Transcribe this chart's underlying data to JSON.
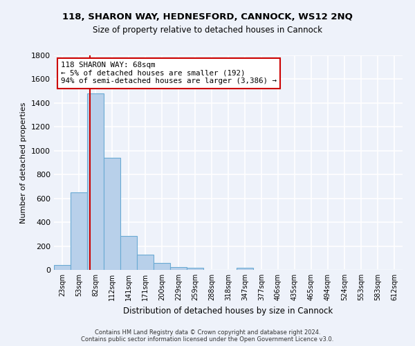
{
  "title_line1": "118, SHARON WAY, HEDNESFORD, CANNOCK, WS12 2NQ",
  "title_line2": "Size of property relative to detached houses in Cannock",
  "xlabel": "Distribution of detached houses by size in Cannock",
  "ylabel": "Number of detached properties",
  "bar_color": "#b8d0ea",
  "bar_edge_color": "#6aaad4",
  "categories": [
    "23sqm",
    "53sqm",
    "82sqm",
    "112sqm",
    "141sqm",
    "171sqm",
    "200sqm",
    "229sqm",
    "259sqm",
    "288sqm",
    "318sqm",
    "347sqm",
    "377sqm",
    "406sqm",
    "435sqm",
    "465sqm",
    "494sqm",
    "524sqm",
    "553sqm",
    "583sqm",
    "612sqm"
  ],
  "values": [
    40,
    650,
    1480,
    940,
    285,
    125,
    60,
    25,
    15,
    0,
    0,
    15,
    0,
    0,
    0,
    0,
    0,
    0,
    0,
    0,
    0
  ],
  "ylim": [
    0,
    1800
  ],
  "yticks": [
    0,
    200,
    400,
    600,
    800,
    1000,
    1200,
    1400,
    1600,
    1800
  ],
  "property_line_x": 1.67,
  "annotation_text": "118 SHARON WAY: 68sqm\n← 5% of detached houses are smaller (192)\n94% of semi-detached houses are larger (3,386) →",
  "annotation_box_color": "#ffffff",
  "annotation_box_edge_color": "#cc0000",
  "red_line_color": "#cc0000",
  "background_color": "#eef2fa",
  "grid_color": "#ffffff",
  "footer_line1": "Contains HM Land Registry data © Crown copyright and database right 2024.",
  "footer_line2": "Contains public sector information licensed under the Open Government Licence v3.0."
}
